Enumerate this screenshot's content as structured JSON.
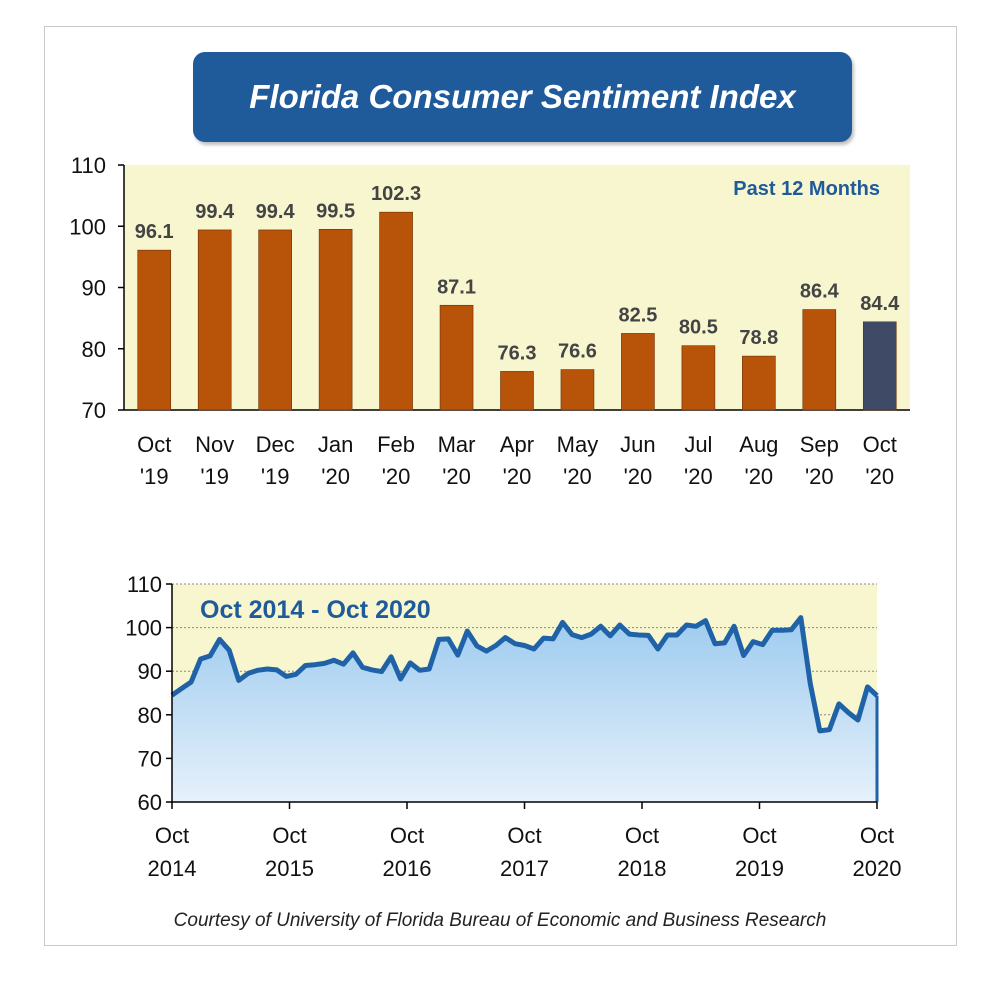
{
  "title": "Florida Consumer Sentiment Index",
  "footer": "Courtesy of University of Florida Bureau of Economic and Business Research",
  "colors": {
    "banner": "#1f5a9a",
    "bar": "#b8530a",
    "bar_highlight": "#3f4b66",
    "plot_bg": "#f7f6cf",
    "line": "#2062a8",
    "area_top": "#9ecbef",
    "area_bottom": "#e6f1fb"
  },
  "chart_data": [
    {
      "type": "bar",
      "annotation": "Past 12 Months",
      "categories": [
        "Oct '19",
        "Nov '19",
        "Dec '19",
        "Jan '20",
        "Feb '20",
        "Mar '20",
        "Apr '20",
        "May '20",
        "Jun '20",
        "Jul '20",
        "Aug '20",
        "Sep '20",
        "Oct '20"
      ],
      "tick_labels": [
        [
          "Oct",
          "'19"
        ],
        [
          "Nov",
          "'19"
        ],
        [
          "Dec",
          "'19"
        ],
        [
          "Jan",
          "'20"
        ],
        [
          "Feb",
          "'20"
        ],
        [
          "Mar",
          "'20"
        ],
        [
          "Apr",
          "'20"
        ],
        [
          "May",
          "'20"
        ],
        [
          "Jun",
          "'20"
        ],
        [
          "Jul",
          "'20"
        ],
        [
          "Aug",
          "'20"
        ],
        [
          "Sep",
          "'20"
        ],
        [
          "Oct",
          "'20"
        ]
      ],
      "values": [
        96.1,
        99.4,
        99.4,
        99.5,
        102.3,
        87.1,
        76.3,
        76.6,
        82.5,
        80.5,
        78.8,
        86.4,
        84.4
      ],
      "value_labels": [
        "96.1",
        "99.4",
        "99.4",
        "99.5",
        "102.3",
        "87.1",
        "76.3",
        "76.6",
        "82.5",
        "80.5",
        "78.8",
        "86.4",
        "84.4"
      ],
      "highlight_last": true,
      "ylim": [
        70,
        110
      ],
      "yticks": [
        70,
        80,
        90,
        100,
        110
      ],
      "xlabel": "",
      "ylabel": "",
      "grid": false
    },
    {
      "type": "area",
      "annotation": "Oct 2014 - Oct 2020",
      "x_range": [
        "Oct 2014",
        "Oct 2020"
      ],
      "x_ticks": [
        [
          "Oct",
          "2014"
        ],
        [
          "Oct",
          "2015"
        ],
        [
          "Oct",
          "2016"
        ],
        [
          "Oct",
          "2017"
        ],
        [
          "Oct",
          "2018"
        ],
        [
          "Oct",
          "2019"
        ],
        [
          "Oct",
          "2020"
        ]
      ],
      "values": [
        84.5,
        86,
        87.5,
        92.8,
        93.5,
        97.3,
        94.8,
        87.9,
        89.5,
        90.2,
        90.5,
        90.3,
        88.8,
        89.3,
        91.3,
        91.5,
        91.8,
        92.5,
        91.6,
        94.2,
        90.9,
        90.3,
        89.9,
        93.3,
        88.2,
        91.9,
        90.2,
        90.5,
        97.3,
        97.4,
        93.7,
        99.2,
        95.8,
        94.6,
        95.9,
        97.7,
        96.3,
        95.9,
        95.1,
        97.6,
        97.4,
        101.2,
        98.4,
        97.7,
        98.5,
        100.3,
        98.1,
        100.6,
        98.5,
        98.3,
        98.2,
        95.1,
        98.3,
        98.3,
        100.6,
        100.3,
        101.6,
        96.3,
        96.5,
        100.3,
        93.6,
        96.8,
        96.1,
        99.4,
        99.4,
        99.5,
        102.3,
        87.1,
        76.3,
        76.6,
        82.5,
        80.5,
        78.8,
        86.4,
        84.4
      ],
      "ylim": [
        60,
        110
      ],
      "yticks": [
        60,
        70,
        80,
        90,
        100,
        110
      ],
      "xlabel": "",
      "ylabel": "",
      "grid": true
    }
  ]
}
